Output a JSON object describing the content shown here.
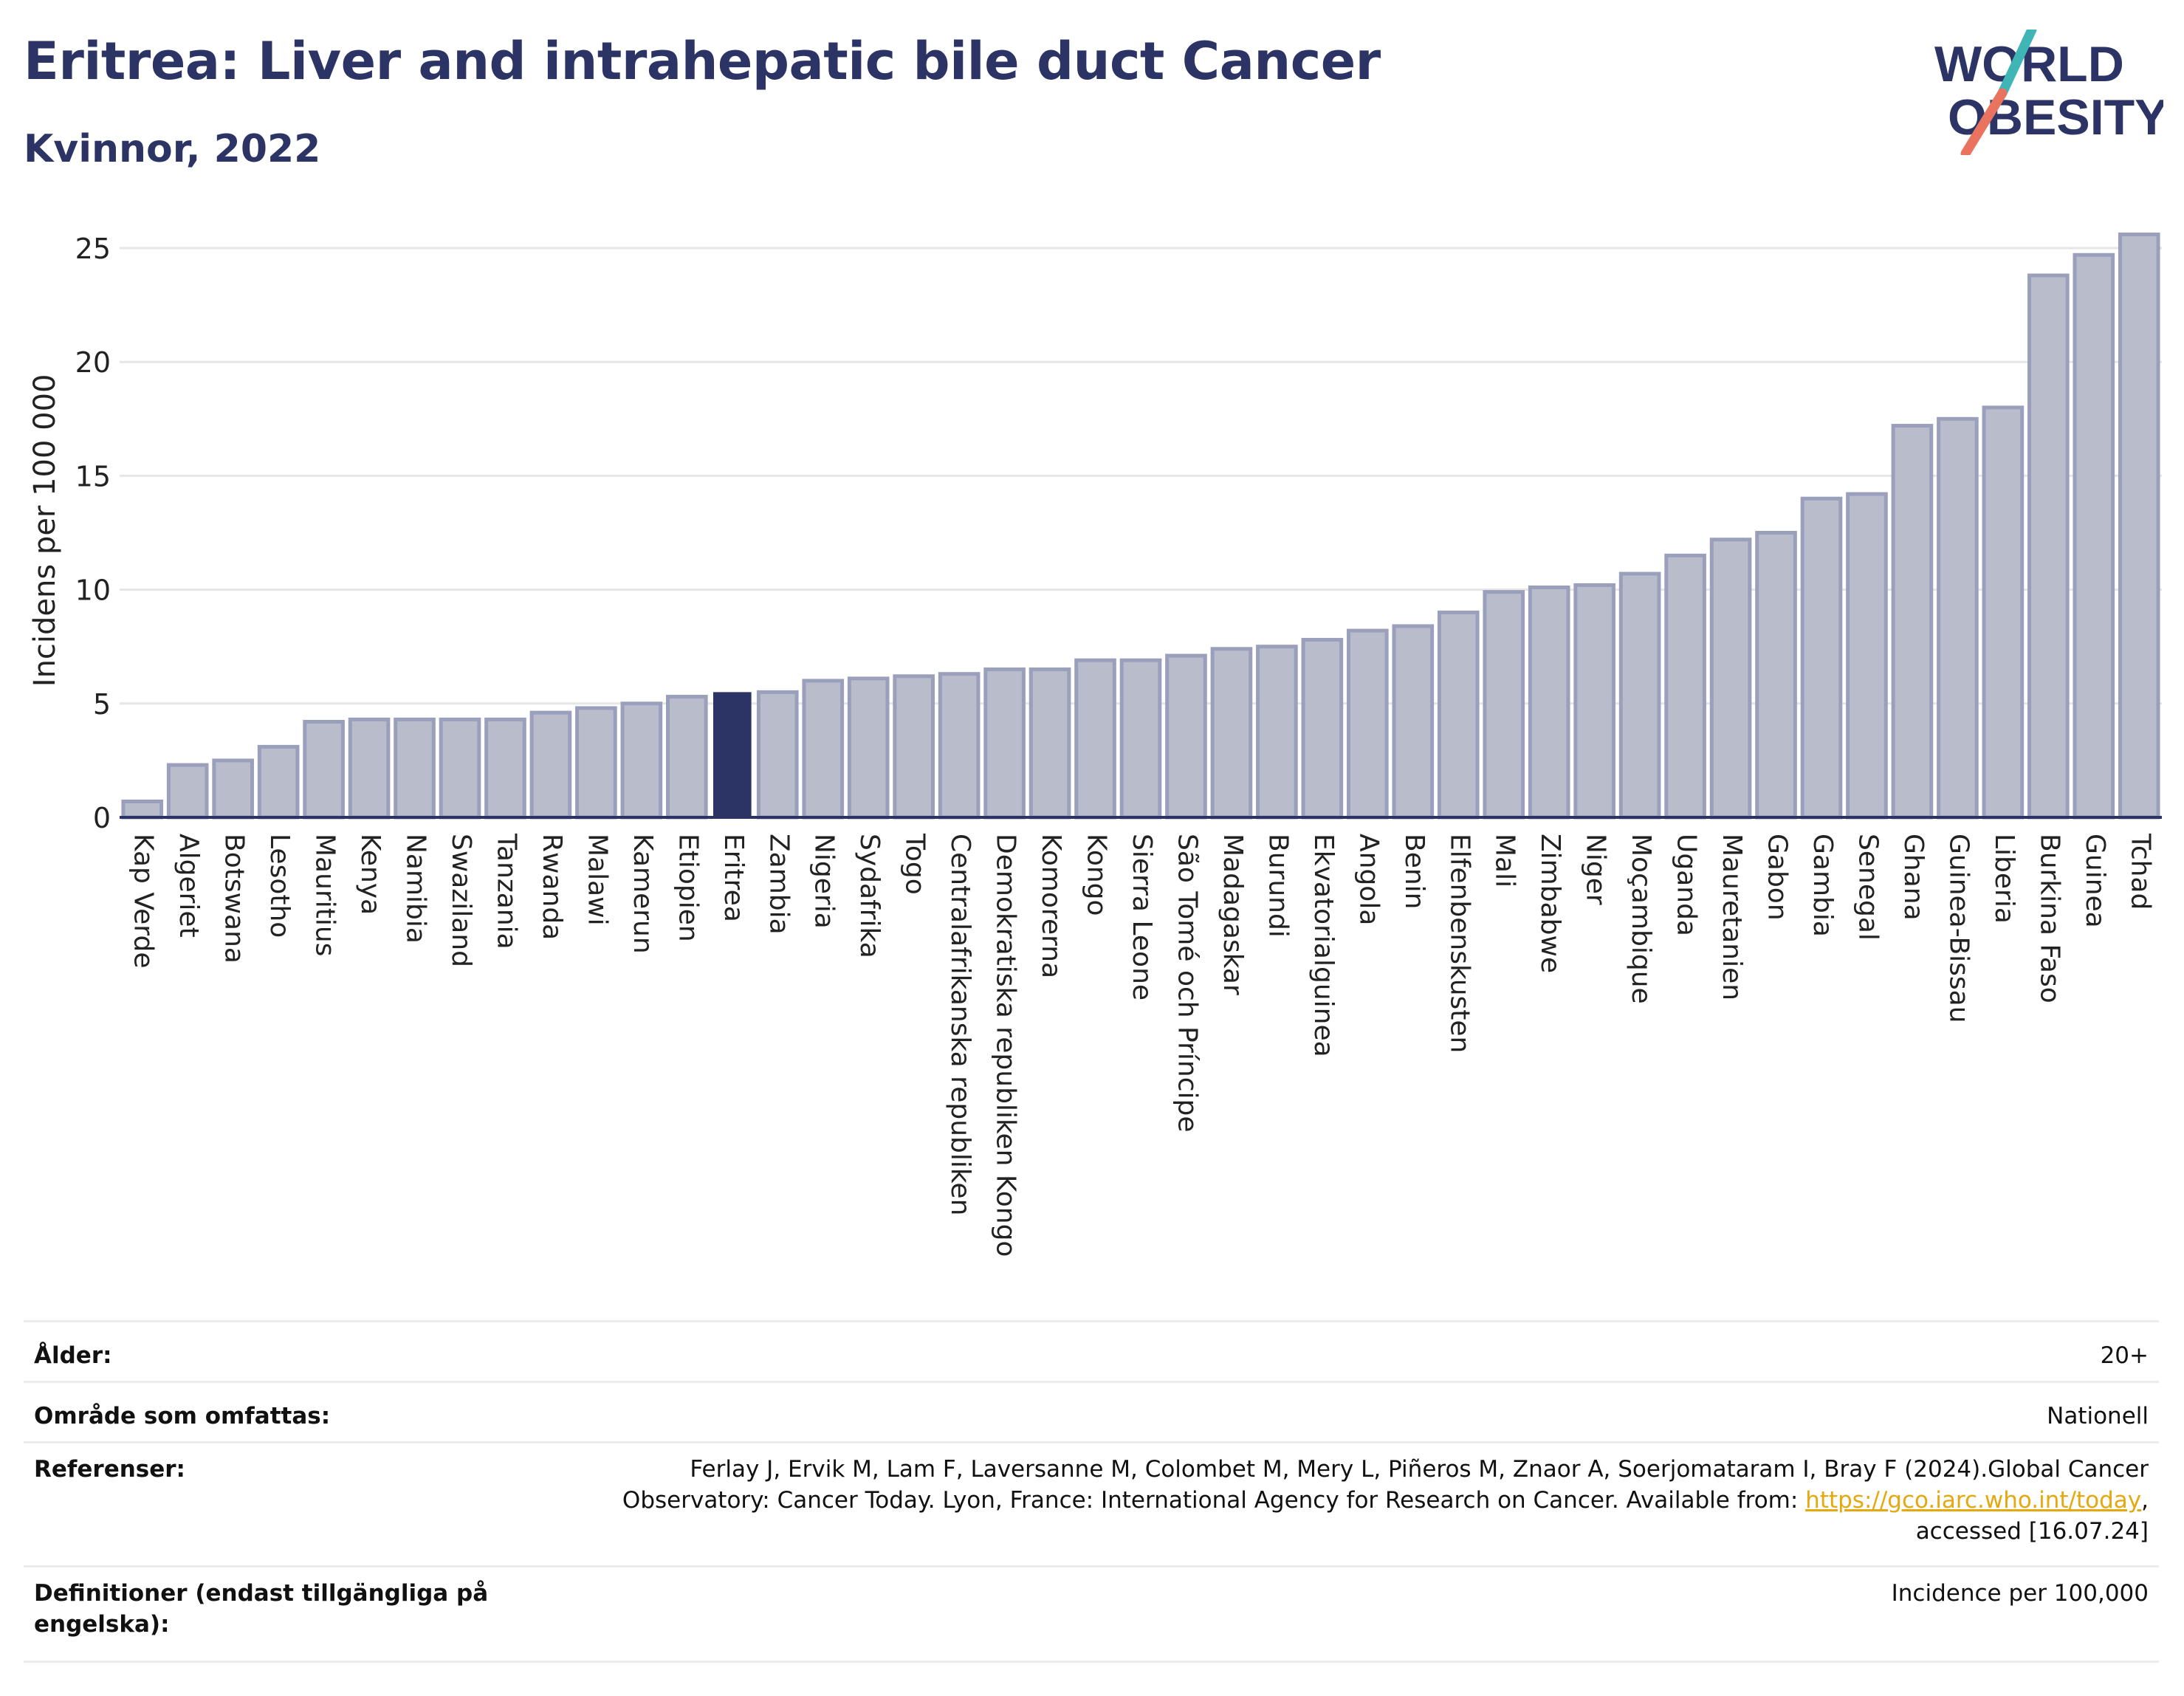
{
  "header": {
    "title": "Eritrea: Liver and intrahepatic bile duct Cancer",
    "subtitle": "Kvinnor, 2022"
  },
  "logo": {
    "line1": "WORLD",
    "line2": "OBESITY",
    "colors": {
      "text": "#2b3464",
      "teal": "#3fb6b5",
      "coral": "#e9735f"
    }
  },
  "chart_data": {
    "type": "bar",
    "ylabel": "Incidens per 100 000",
    "ylim": [
      0,
      26.5
    ],
    "yticks": [
      0,
      5,
      10,
      15,
      20,
      25
    ],
    "grid": true,
    "highlight": "Eritrea",
    "colors": {
      "bar": "#b8bccb",
      "bar_edge": "#9aa0bb",
      "highlight": "#2b3464",
      "grid": "#e6e6e6"
    },
    "categories": [
      "Kap Verde",
      "Algeriet",
      "Botswana",
      "Lesotho",
      "Mauritius",
      "Kenya",
      "Namibia",
      "Swaziland",
      "Tanzania",
      "Rwanda",
      "Malawi",
      "Kamerun",
      "Etiopien",
      "Eritrea",
      "Zambia",
      "Nigeria",
      "Sydafrika",
      "Togo",
      "Centralafrikanska republiken",
      "Demokratiska republiken Kongo",
      "Komorerna",
      "Kongo",
      "Sierra Leone",
      "São Tomé och Príncipe",
      "Madagaskar",
      "Burundi",
      "Ekvatorialguinea",
      "Angola",
      "Benin",
      "Elfenbenskusten",
      "Mali",
      "Zimbabwe",
      "Niger",
      "Moçambique",
      "Uganda",
      "Mauretanien",
      "Gabon",
      "Gambia",
      "Senegal",
      "Ghana",
      "Guinea-Bissau",
      "Liberia",
      "Burkina Faso",
      "Guinea",
      "Tchad"
    ],
    "values": [
      0.7,
      2.3,
      2.5,
      3.1,
      4.2,
      4.3,
      4.3,
      4.3,
      4.3,
      4.6,
      4.8,
      5.0,
      5.3,
      5.5,
      5.5,
      6.0,
      6.1,
      6.2,
      6.3,
      6.5,
      6.5,
      6.9,
      6.9,
      7.1,
      7.4,
      7.5,
      7.8,
      8.2,
      8.4,
      9.0,
      9.9,
      10.1,
      10.2,
      10.7,
      11.5,
      12.2,
      12.5,
      14.0,
      14.2,
      17.2,
      17.5,
      18.0,
      23.8,
      24.7,
      25.6
    ]
  },
  "info": {
    "age_label": "Ålder:",
    "age_value": "20+",
    "area_label": "Område som omfattas:",
    "area_value": "Nationell",
    "refs_label": "Referenser:",
    "refs_line1": "Ferlay J, Ervik M, Lam F, Laversanne M, Colombet M, Mery L, Piñeros M, Znaor A, Soerjomataram I, Bray F (2024).Global Cancer",
    "refs_line2_pre": "Observatory: Cancer Today. Lyon, France: International Agency for Research on Cancer. Available from: ",
    "refs_link": "https://gco.iarc.who.int/today",
    "refs_line2_post": ",",
    "refs_line3": "accessed [16.07.24]",
    "def_label_line1": "Definitioner (endast tillgängliga på",
    "def_label_line2": "engelska):",
    "def_value": "Incidence per 100,000"
  }
}
